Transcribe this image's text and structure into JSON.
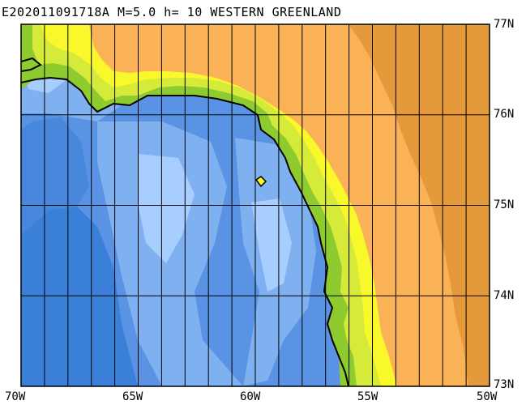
{
  "title": "E202011091718A M=5.0 h= 10 WESTERN GREENLAND",
  "lon_labels": [
    "70W",
    "65W",
    "60W",
    "55W",
    "50W"
  ],
  "lat_labels": [
    "77N",
    "76N",
    "75N",
    "74N",
    "73N"
  ],
  "colors": {
    "ocean_deep": "#3a7fd8",
    "ocean_mid": "#5a93e3",
    "ocean_light": "#7fb1f0",
    "ocean_shelf": "#a8ceff",
    "coast_green": "#8ecb2e",
    "coast_light": "#d6ea3a",
    "lowland_yellow": "#f8f82a",
    "land_orange": "#fbb256",
    "icecap_dark": "#e49a3a",
    "grid": "#000000"
  }
}
